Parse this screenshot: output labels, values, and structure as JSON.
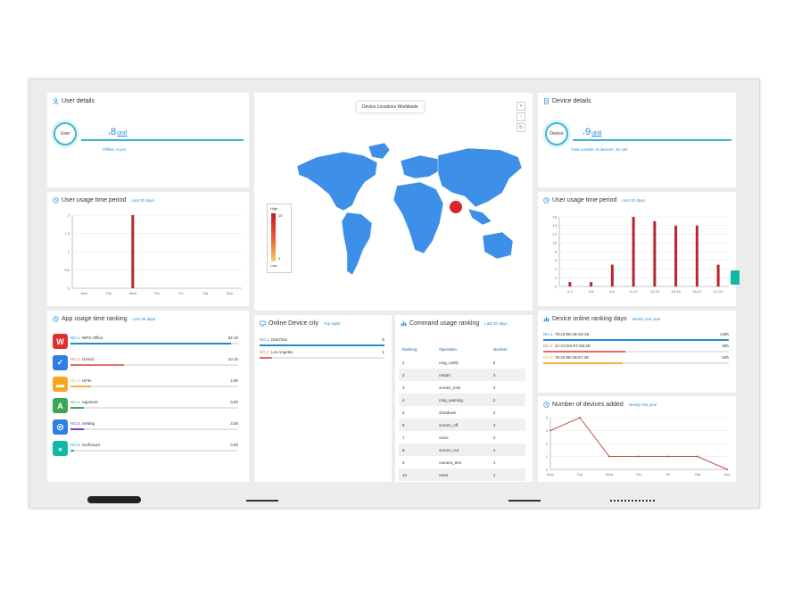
{
  "colors": {
    "accent": "#1e8bd6",
    "ring": "#3bb7d3",
    "map": "#3d8fe8",
    "bar": "#b8262b"
  },
  "user_details": {
    "title": "User details",
    "ring_label": "User",
    "count": "8",
    "unit": "unit",
    "sub": "Offline: 0 pcs"
  },
  "device_details": {
    "title": "Device details",
    "ring_label": "Device",
    "count": "9",
    "unit": "unit",
    "sub": "Total number of devices: 20 unit"
  },
  "map": {
    "title": "Device Locations Worldwide",
    "legend_high": "High",
    "legend_low": "Low",
    "legend_max": "15",
    "legend_min": "0",
    "zoom_in": "+",
    "zoom_out": "-",
    "reset": "↻"
  },
  "user_usage": {
    "title": "User usage time period",
    "subtitle": "Last 30 days"
  },
  "device_usage": {
    "title": "User usage time period",
    "subtitle": "Last 30 days"
  },
  "app_ranking": {
    "title": "App usage time ranking",
    "subtitle": "Last 30 days",
    "items": [
      {
        "rank": "NO.1.",
        "name": "WPS Office",
        "value": "32.1h",
        "icon": "W",
        "color": "#e0302e",
        "bar": "#1e8bd6",
        "pct": 0.24
      },
      {
        "rank": "NO.2.",
        "name": "Umind",
        "value": "10.1h",
        "icon": "✓",
        "color": "#2f7ee8",
        "bar": "#e06c6c",
        "pct": 0.08
      },
      {
        "rank": "NO.3.",
        "name": "UFile",
        "value": "4.9h",
        "icon": "▬",
        "color": "#f5a623",
        "bar": "#f0b040",
        "pct": 0.03
      },
      {
        "rank": "NO.4.",
        "name": "Appstore",
        "value": "3.5h",
        "icon": "A",
        "color": "#3aa757",
        "bar": "#3aa757",
        "pct": 0.02
      },
      {
        "rank": "NO.5.",
        "name": "Setting",
        "value": "3.5h",
        "icon": "◎",
        "color": "#2f7ee8",
        "bar": "#7a3bd6",
        "pct": 0.02
      },
      {
        "rank": "NO.6.",
        "name": "Surfboard",
        "value": "0.6h",
        "icon": "»",
        "color": "#12b8a6",
        "bar": "#12b8a6",
        "pct": 0.005
      }
    ]
  },
  "online_city": {
    "title": "Online Device city",
    "subtitle": "Top eight",
    "items": [
      {
        "rank": "NO.1.",
        "name": "Danzhou",
        "value": "5",
        "color": "#1e8bd6",
        "pct": 1.0
      },
      {
        "rank": "NO.2.",
        "name": "Los Angeles",
        "value": "1",
        "color": "#e06c6c",
        "pct": 0.1
      }
    ]
  },
  "command_ranking": {
    "title": "Command usage ranking",
    "subtitle": "Last 30 days",
    "headers": [
      "Ranking",
      "Operation",
      "Number"
    ],
    "rows": [
      [
        "1",
        "msg_notify",
        "5"
      ],
      [
        "2",
        "restart",
        "3"
      ],
      [
        "3",
        "screen_lock",
        "3"
      ],
      [
        "4",
        "msg_warning",
        "2"
      ],
      [
        "5",
        "shutdown",
        "2"
      ],
      [
        "6",
        "screen_off",
        "2"
      ],
      [
        "7",
        "voice",
        "2"
      ],
      [
        "8",
        "screen_cut",
        "1"
      ],
      [
        "9",
        "camera_test",
        "1"
      ],
      [
        "10",
        "reset",
        "1"
      ]
    ]
  },
  "device_online": {
    "title": "Device online ranking days",
    "subtitle": "Nearly one year",
    "items": [
      {
        "rank": "NO.1.",
        "name": "78:22:88:AB:4D:18",
        "value": "148h",
        "color": "#1e8bd6",
        "pct": 1.0
      },
      {
        "rank": "NO.2.",
        "name": "2C:C3:E6:FC:88:2D",
        "value": "65h",
        "color": "#e06c6c",
        "pct": 0.44
      },
      {
        "rank": "NO.3.",
        "name": "78:22:88:AB:67:4D",
        "value": "63h",
        "color": "#f0b040",
        "pct": 0.43
      }
    ]
  },
  "devices_added": {
    "title": "Number of devices added",
    "subtitle": "Nearly one year"
  },
  "chart_data": [
    {
      "type": "bar",
      "title": "User usage time period",
      "categories": [
        "Mon",
        "Tue",
        "Wed",
        "Thu",
        "Fri",
        "Sat",
        "Sun"
      ],
      "values": [
        0,
        0,
        2,
        0,
        0,
        0,
        0
      ],
      "ylim": [
        0,
        2
      ],
      "yticks": [
        "0",
        "0.5",
        "1",
        "1.5",
        "2"
      ],
      "grid": true
    },
    {
      "type": "bar",
      "title": "User usage time period",
      "categories": [
        "0-2",
        "3-6",
        "6-9",
        "9-12",
        "12-15",
        "15-18",
        "18-21",
        "21-24"
      ],
      "values": [
        1,
        1,
        5,
        16,
        15,
        14,
        14,
        5
      ],
      "ylim": [
        0,
        16
      ],
      "yticks": [
        "0",
        "2",
        "4",
        "6",
        "8",
        "10",
        "12",
        "14",
        "16"
      ],
      "grid": true
    },
    {
      "type": "line",
      "title": "Number of devices added",
      "categories": [
        "Mon",
        "Tue",
        "Wed",
        "Thu",
        "Fri",
        "Sat",
        "Sun"
      ],
      "values": [
        3,
        4,
        1,
        1,
        1,
        1,
        0
      ],
      "ylim": [
        0,
        4
      ],
      "yticks": [
        "0",
        "1",
        "2",
        "3",
        "4"
      ],
      "grid": true
    }
  ]
}
